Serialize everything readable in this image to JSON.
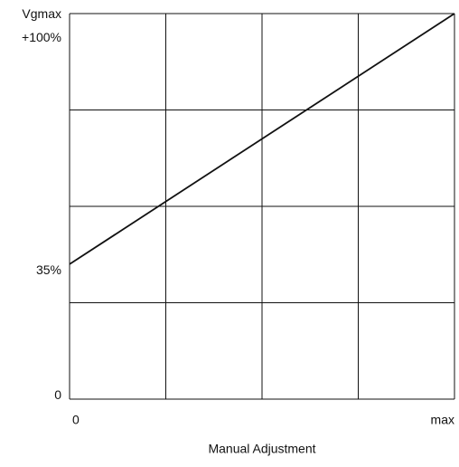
{
  "chart_data": {
    "type": "line",
    "x": [
      0,
      100
    ],
    "series": [
      {
        "name": "Vg",
        "color": "#111111",
        "values": [
          35,
          100
        ]
      }
    ],
    "xlim": [
      0,
      100
    ],
    "ylim": [
      0,
      100
    ],
    "xticks": [
      0,
      {
        "value": 100,
        "label": "max"
      }
    ],
    "yticks": [
      0,
      {
        "value": 35,
        "label": "35%"
      },
      {
        "value": 100,
        "label": "Vgmax\n+100%"
      }
    ],
    "xgrid": [
      0,
      25,
      50,
      75,
      100
    ],
    "ygrid": [
      0,
      25,
      50,
      75,
      100
    ],
    "grid": true,
    "xlabel": "Manual Adjustment"
  }
}
